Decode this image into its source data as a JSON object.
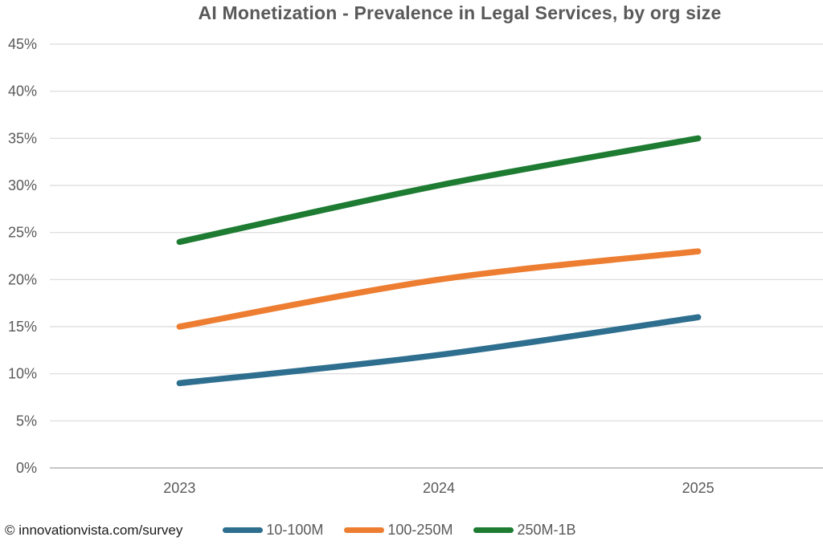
{
  "title": "AI Monetization - Prevalence in Legal Services, by org size",
  "footer": {
    "source_label": "© innovationvista.com/survey"
  },
  "colors": {
    "title_text": "#595959",
    "axis_label": "#595959",
    "gridline": "#d9d9d9",
    "axis_line": "#bfbfbf",
    "footer_text": "#1a1a1a",
    "legend_text": "#595959",
    "series_blue": "#2e6e8e",
    "series_orange": "#ed7d31",
    "series_green": "#1e7b32"
  },
  "chart_data": {
    "type": "line",
    "title": "AI Monetization - Prevalence in Legal Services, by org size",
    "categories": [
      "2023",
      "2024",
      "2025"
    ],
    "series": [
      {
        "name": "10-100M",
        "color": "#2e6e8e",
        "values": [
          9,
          12,
          16
        ]
      },
      {
        "name": "100-250M",
        "color": "#ed7d31",
        "values": [
          15,
          20,
          23
        ]
      },
      {
        "name": "250M-1B",
        "color": "#1e7b32",
        "values": [
          24,
          30,
          35
        ]
      }
    ],
    "xlabel": "",
    "ylabel": "",
    "ylim": [
      0,
      45
    ],
    "y_step": 5,
    "y_tick_labels": [
      "0%",
      "5%",
      "10%",
      "15%",
      "20%",
      "25%",
      "30%",
      "35%",
      "40%",
      "45%"
    ],
    "grid": true,
    "smoothed": true,
    "line_width": 7.5,
    "legend_position": "bottom"
  }
}
